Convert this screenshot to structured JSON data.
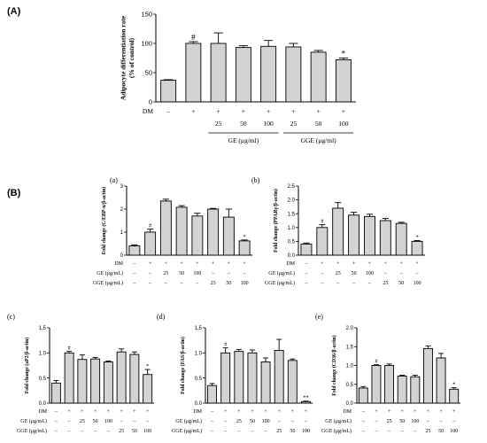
{
  "figure": {
    "panel_A_label": "(A)",
    "panel_B_label": "(B)"
  },
  "chart_data": [
    {
      "id": "A",
      "type": "bar",
      "panel_label": "",
      "ylabel": "Adipocyte differentiation rate\n(% of control)",
      "ylim": [
        0,
        150
      ],
      "yticks": [
        "0",
        "50",
        "100",
        "150"
      ],
      "values": [
        37,
        100,
        100,
        93,
        95,
        94,
        85,
        72
      ],
      "errors": [
        1,
        3,
        18,
        3,
        10,
        6,
        3,
        3
      ],
      "annotations": [
        "",
        "#",
        "",
        "",
        "",
        "",
        "",
        "*"
      ],
      "row_labels": [
        "DM"
      ],
      "rows": [
        [
          "–",
          "+",
          "+",
          "+",
          "+",
          "+",
          "+",
          "+"
        ]
      ],
      "sub_rows": [
        [
          "",
          "",
          "25",
          "50",
          "100",
          "25",
          "50",
          "100"
        ]
      ],
      "groups": [
        {
          "label": "GE (μg/ml)",
          "from": 2,
          "to": 4
        },
        {
          "label": "GGE (μg/ml)",
          "from": 5,
          "to": 7
        }
      ]
    },
    {
      "id": "a",
      "type": "bar",
      "panel_label": "(a)",
      "ylabel": "Fold change (C/EBP-α/β-actin)",
      "ylim": [
        0,
        3
      ],
      "yticks": [
        "0",
        "1",
        "2",
        "3"
      ],
      "values": [
        0.4,
        1.0,
        2.35,
        2.08,
        1.7,
        2.0,
        1.65,
        0.62
      ],
      "errors": [
        0.04,
        0.13,
        0.08,
        0.07,
        0.12,
        0.03,
        0.35,
        0.04
      ],
      "annotations": [
        "",
        "#",
        "",
        "",
        "",
        "",
        "",
        "*"
      ],
      "row_labels": [
        "DM",
        "GE (μg/mL)",
        "GGE (μg/mL)"
      ],
      "rows": [
        [
          "–",
          "+",
          "+",
          "+",
          "+",
          "+",
          "+",
          "+"
        ],
        [
          "–",
          "–",
          "25",
          "50",
          "100",
          "–",
          "–",
          "–"
        ],
        [
          "–",
          "–",
          "–",
          "–",
          "–",
          "25",
          "50",
          "100"
        ]
      ]
    },
    {
      "id": "b",
      "type": "bar",
      "panel_label": "(b)",
      "ylabel": "Fold change (PPARγ/β-actin)",
      "ylim": [
        0,
        2.5
      ],
      "yticks": [
        "0.0",
        "0.5",
        "1.0",
        "1.5",
        "2.0",
        "2.5"
      ],
      "values": [
        0.4,
        1.0,
        1.7,
        1.45,
        1.4,
        1.25,
        1.15,
        0.5
      ],
      "errors": [
        0.04,
        0.1,
        0.2,
        0.1,
        0.08,
        0.08,
        0.04,
        0.03
      ],
      "annotations": [
        "",
        "#",
        "",
        "",
        "",
        "",
        "",
        "*"
      ],
      "row_labels": [
        "DM",
        "GE (μg/mL)",
        "GGE (μg/mL)"
      ],
      "rows": [
        [
          "–",
          "+",
          "+",
          "+",
          "+",
          "+",
          "+",
          "+"
        ],
        [
          "–",
          "–",
          "25",
          "50",
          "100",
          "–",
          "–",
          "–"
        ],
        [
          "–",
          "–",
          "–",
          "–",
          "–",
          "25",
          "50",
          "100"
        ]
      ]
    },
    {
      "id": "c",
      "type": "bar",
      "panel_label": "(c)",
      "ylabel": "Fold change (aP2/β-actin)",
      "ylim": [
        0,
        1.5
      ],
      "yticks": [
        "0.0",
        "0.5",
        "1.0",
        "1.5"
      ],
      "values": [
        0.4,
        1.0,
        0.87,
        0.88,
        0.82,
        1.02,
        0.97,
        0.57
      ],
      "errors": [
        0.05,
        0.03,
        0.09,
        0.03,
        0.02,
        0.06,
        0.05,
        0.1
      ],
      "annotations": [
        "",
        "#",
        "",
        "",
        "",
        "",
        "",
        "*"
      ],
      "row_labels": [
        "DM",
        "GE (μg/mL)",
        "GGE (μg/mL)"
      ],
      "rows": [
        [
          "–",
          "+",
          "+",
          "+",
          "+",
          "+",
          "+",
          "+"
        ],
        [
          "–",
          "–",
          "25",
          "50",
          "100",
          "–",
          "–",
          "–"
        ],
        [
          "–",
          "–",
          "–",
          "–",
          "–",
          "25",
          "50",
          "100"
        ]
      ]
    },
    {
      "id": "d",
      "type": "bar",
      "panel_label": "(d)",
      "ylabel": "Fold change (FAS/β-actin)",
      "ylim": [
        0,
        1.5
      ],
      "yticks": [
        "0.0",
        "0.5",
        "1.0",
        "1.5"
      ],
      "values": [
        0.35,
        1.0,
        1.03,
        1.0,
        0.82,
        1.05,
        0.85,
        0.03
      ],
      "errors": [
        0.04,
        0.1,
        0.04,
        0.06,
        0.08,
        0.22,
        0.03,
        0.01
      ],
      "annotations": [
        "",
        "#",
        "",
        "",
        "",
        "",
        "",
        "**"
      ],
      "row_labels": [
        "DM",
        "GE (μg/mL)",
        "GGE (μg/mL)"
      ],
      "rows": [
        [
          "–",
          "+",
          "+",
          "+",
          "+",
          "+",
          "+",
          "+"
        ],
        [
          "–",
          "–",
          "25",
          "50",
          "100",
          "–",
          "–",
          "–"
        ],
        [
          "–",
          "–",
          "–",
          "–",
          "–",
          "25",
          "50",
          "100"
        ]
      ]
    },
    {
      "id": "e",
      "type": "bar",
      "panel_label": "(e)",
      "ylabel": "Fold change (CD36/β-actin)",
      "ylim": [
        0,
        2
      ],
      "yticks": [
        "0.0",
        "0.5",
        "1.0",
        "1.5",
        "2.0"
      ],
      "values": [
        0.4,
        1.0,
        1.0,
        0.72,
        0.7,
        1.45,
        1.2,
        0.37
      ],
      "errors": [
        0.04,
        0.02,
        0.04,
        0.02,
        0.04,
        0.07,
        0.12,
        0.04
      ],
      "annotations": [
        "",
        "#",
        "",
        "",
        "",
        "",
        "",
        "*"
      ],
      "row_labels": [
        "DM",
        "GE (μg/mL)",
        "GGE (μg/mL)"
      ],
      "rows": [
        [
          "–",
          "+",
          "+",
          "+",
          "+",
          "+",
          "+",
          "+"
        ],
        [
          "–",
          "–",
          "25",
          "50",
          "100",
          "–",
          "–",
          "–"
        ],
        [
          "–",
          "–",
          "–",
          "–",
          "–",
          "25",
          "50",
          "100"
        ]
      ]
    }
  ]
}
